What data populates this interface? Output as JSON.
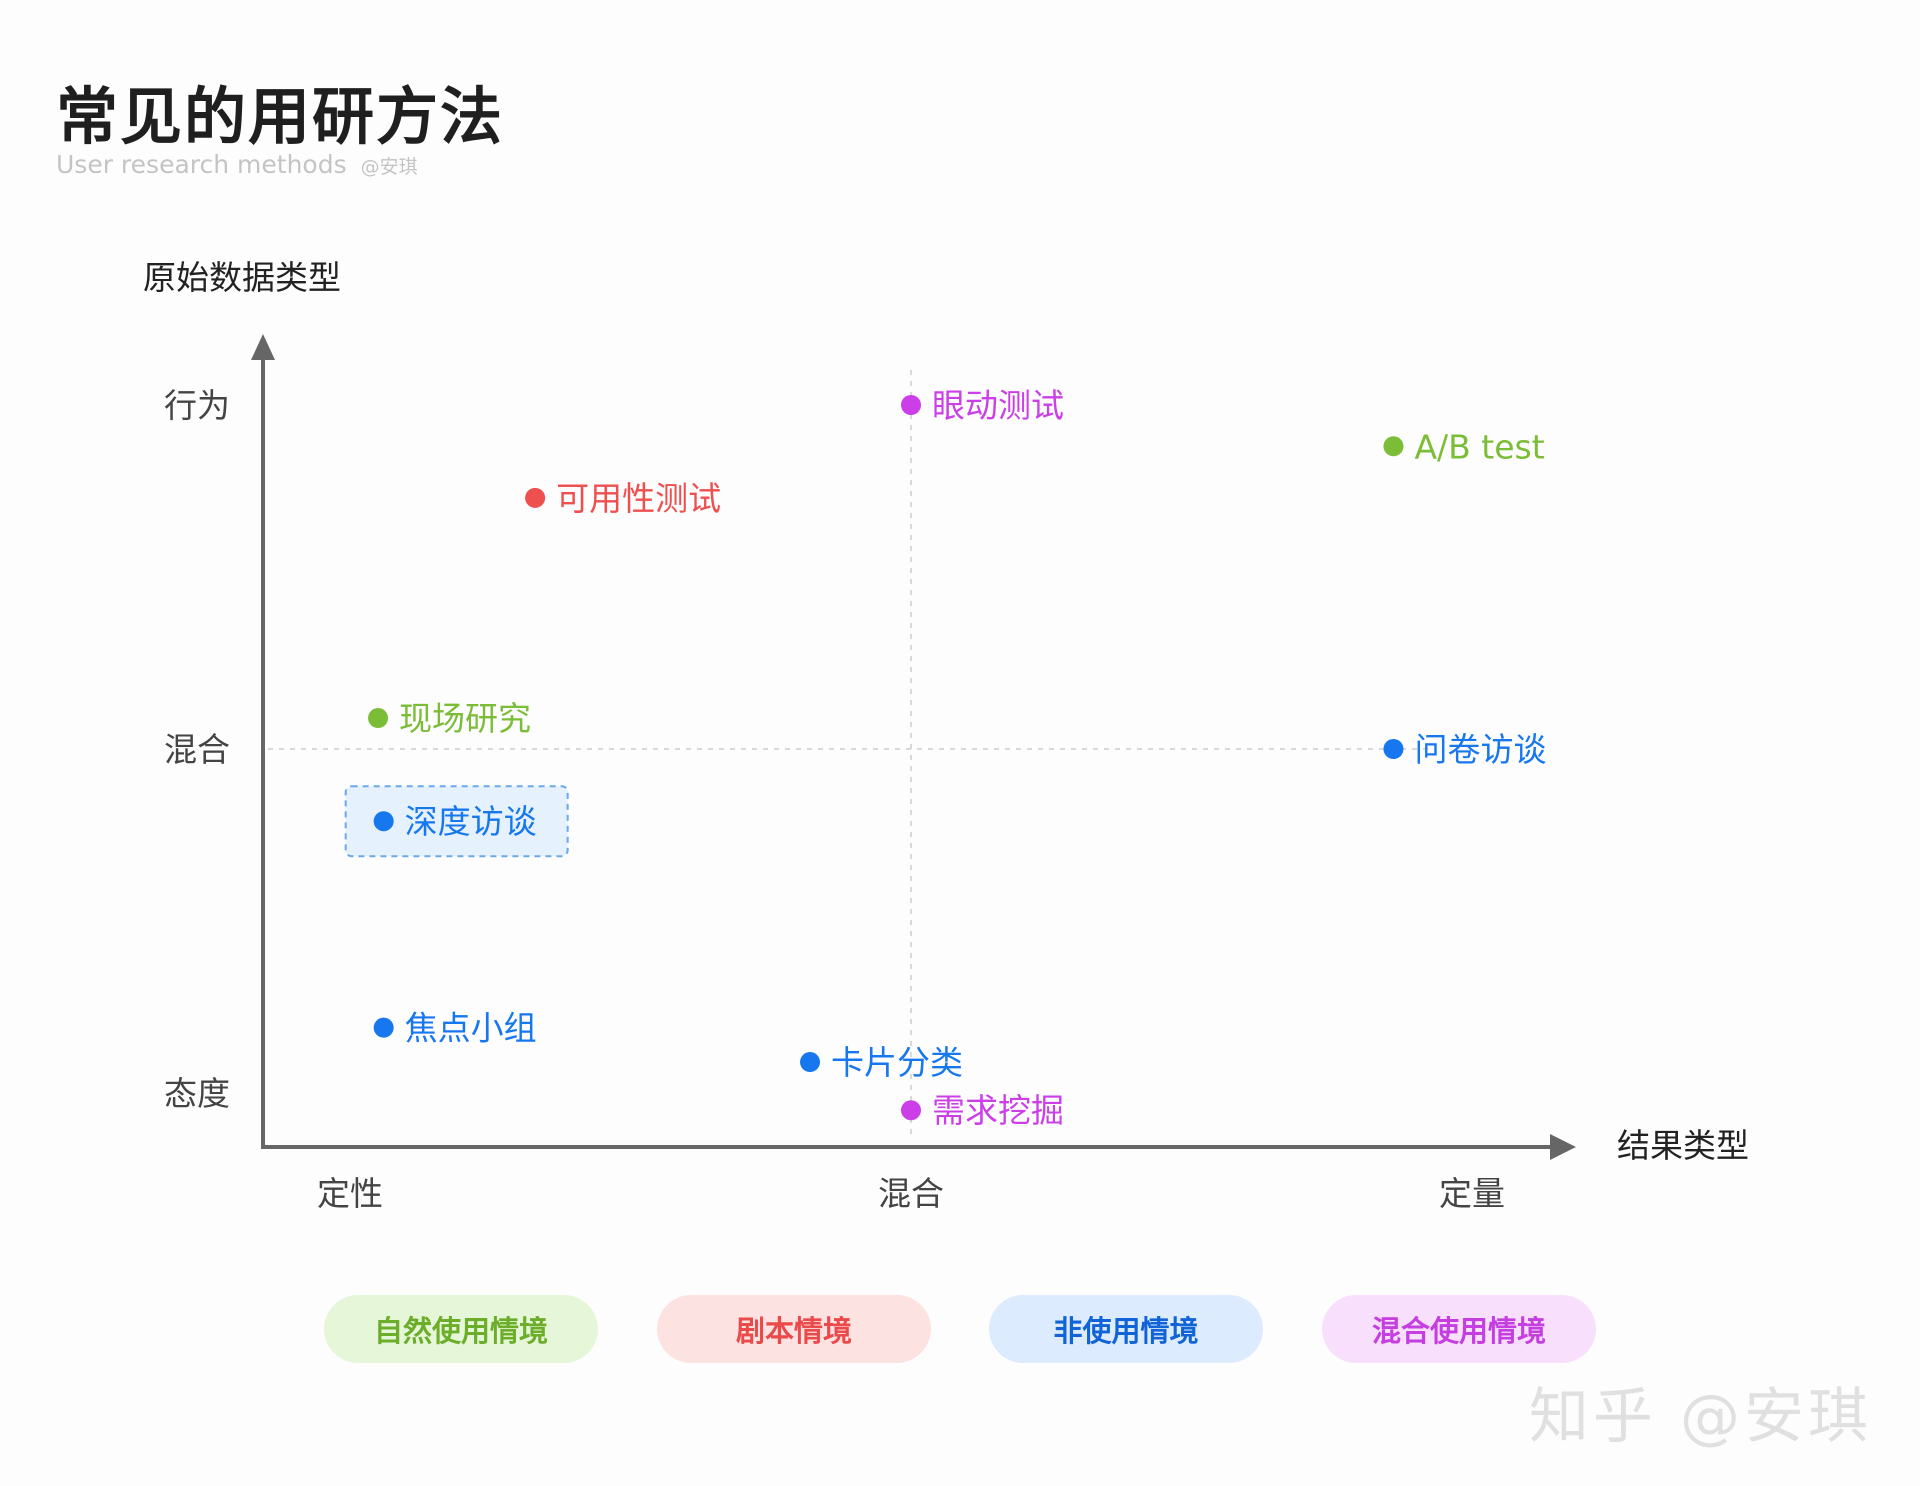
{
  "header": {
    "title": "常见的用研方法",
    "subtitle": "User research methods",
    "author": "@安琪"
  },
  "watermark": "知乎 @安琪",
  "colors": {
    "natural": "#7cbd38",
    "scripted": "#ee5050",
    "decontext": "#1677ee",
    "mixed": "#cc3fe8",
    "axis": "#666666"
  },
  "legend": [
    {
      "label": "自然使用情境",
      "color": "#6cae2a",
      "bg": "#e6f6d8"
    },
    {
      "label": "剧本情境",
      "color": "#ea4a4a",
      "bg": "#fde2e2"
    },
    {
      "label": "非使用情境",
      "color": "#1264d6",
      "bg": "#dcebfd"
    },
    {
      "label": "混合使用情境",
      "color": "#c43ee0",
      "bg": "#f8e0fd"
    }
  ],
  "chart_data": {
    "type": "scatter",
    "title": "",
    "xlabel": "结果类型",
    "ylabel": "原始数据类型",
    "x_ticks": [
      "定性",
      "混合",
      "定量"
    ],
    "y_ticks": [
      "行为",
      "混合",
      "态度"
    ],
    "xlim": [
      -0.2,
      2.2
    ],
    "ylim": [
      -0.15,
      2.15
    ],
    "reference_lines": {
      "x": 1,
      "y": 1
    },
    "grid": false,
    "points": [
      {
        "label": "眼动测试",
        "x": 1.0,
        "y": 2.0,
        "group": "mixed"
      },
      {
        "label": "A/B test",
        "x": 1.86,
        "y": 1.88,
        "group": "natural"
      },
      {
        "label": "可用性测试",
        "x": 0.33,
        "y": 1.73,
        "group": "scripted"
      },
      {
        "label": "现场研究",
        "x": 0.05,
        "y": 1.09,
        "group": "natural"
      },
      {
        "label": "问卷访谈",
        "x": 1.86,
        "y": 1.0,
        "group": "decontext"
      },
      {
        "label": "深度访谈",
        "x": 0.06,
        "y": 0.79,
        "group": "decontext",
        "highlight": true
      },
      {
        "label": "焦点小组",
        "x": 0.06,
        "y": 0.19,
        "group": "decontext"
      },
      {
        "label": "卡片分类",
        "x": 0.82,
        "y": 0.09,
        "group": "decontext"
      },
      {
        "label": "需求挖掘",
        "x": 1.0,
        "y": -0.05,
        "group": "mixed"
      }
    ]
  }
}
